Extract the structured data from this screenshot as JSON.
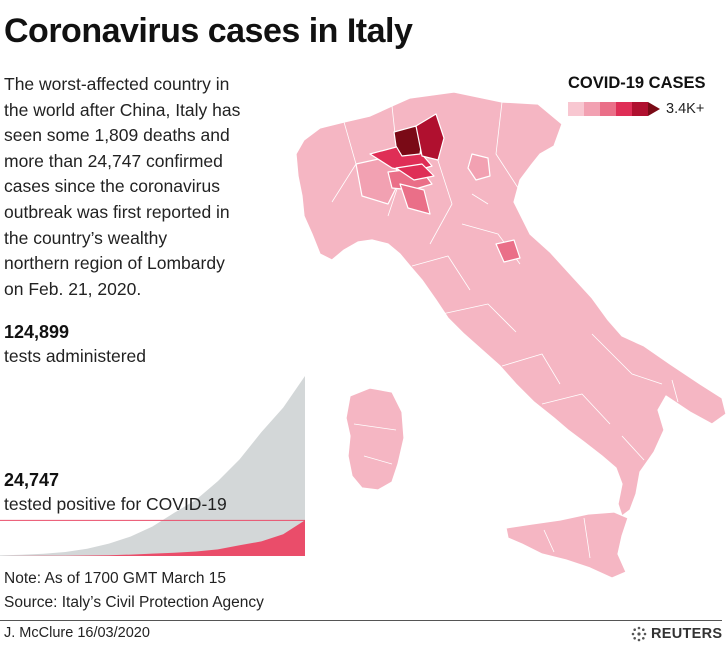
{
  "headline": "Coronavirus cases in Italy",
  "summary": "The worst-affected country in\nthe world after China, Italy has\nseen some 1,809 deaths and\nmore than 24,747 confirmed\ncases since the coronavirus\noutbreak was first reported in\nthe country’s wealthy\nnorthern region of Lombardy\non Feb. 21, 2020.",
  "tests": {
    "value": "124,899",
    "label": "tests administered"
  },
  "positive": {
    "value": "24,747",
    "label": "tested positive for COVID-19"
  },
  "legend": {
    "title": "COVID-19 CASES",
    "max_label": "3.4K+"
  },
  "colors": {
    "tests_area": "#d3d7d8",
    "positive_area": "#ea4d6a",
    "map_base": "#f5b6c3",
    "scale": [
      "#f8c7d1",
      "#f2a1b2",
      "#ea6f88",
      "#df2e56",
      "#b0102f",
      "#7a0a16"
    ]
  },
  "notes": [
    "Note: As of 1700 GMT March 15",
    "Source: Italy’s Civil Protection Agency"
  ],
  "credit": "J. McClure  16/03/2020",
  "brand": "REUTERS",
  "chart_data": {
    "type": "area",
    "series": [
      {
        "values": [
          400,
          800,
          1500,
          2800,
          5000,
          8600,
          13500,
          20500,
          30000,
          39000,
          52000,
          67000,
          86000,
          103000,
          124899
        ]
      },
      {
        "values": [
          20,
          60,
          120,
          200,
          320,
          530,
          1000,
          1700,
          2300,
          3100,
          4600,
          7400,
          10100,
          15100,
          24747
        ]
      }
    ],
    "ylim": [
      0,
      124899
    ]
  }
}
